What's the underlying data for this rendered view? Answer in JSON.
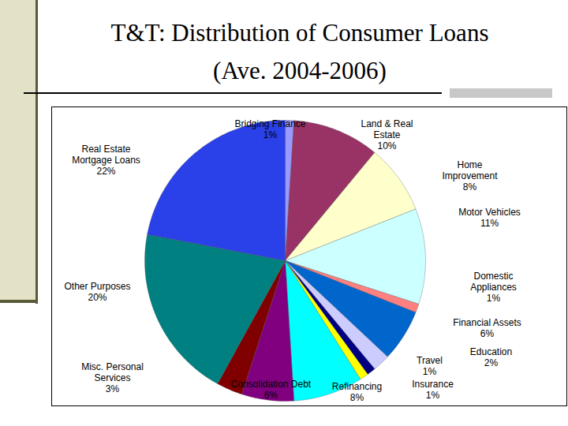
{
  "chart_data": {
    "type": "pie",
    "title": "T&T: Distribution of Consumer Loans",
    "subtitle": "(Ave. 2004-2006)",
    "categories": [
      "Bridging Finance",
      "Land & Real\nEstate",
      "Home\nImprovement",
      "Motor Vehicles",
      "Domestic\nAppliances",
      "Financial Assets",
      "Education",
      "Travel",
      "Insurance",
      "Refinancing",
      "Consolidation Debt",
      "Misc. Personal\nServices",
      "Other Purposes",
      "Real Estate\nMortgage Loans"
    ],
    "values": [
      1,
      10,
      8,
      11,
      1,
      6,
      2,
      1,
      1,
      8,
      6,
      3,
      20,
      22
    ],
    "value_labels": [
      "1%",
      "10%",
      "8%",
      "11%",
      "1%",
      "6%",
      "2%",
      "1%",
      "1%",
      "8%",
      "6%",
      "3%",
      "20%",
      "22%"
    ],
    "colors": [
      "#9999FF",
      "#993366",
      "#FFFFCC",
      "#CCFFFF",
      "#FF8080",
      "#0066CC",
      "#CCCCFF",
      "#000080",
      "#FFFF00",
      "#00FFFF",
      "#800080",
      "#800000",
      "#008080",
      "#2A40E8"
    ],
    "data_labels": true
  }
}
